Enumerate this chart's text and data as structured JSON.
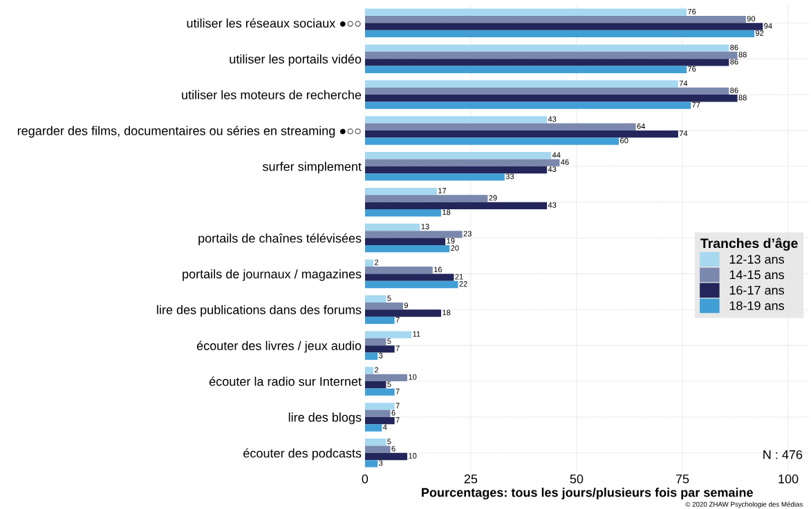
{
  "chart_data": {
    "type": "bar",
    "orientation": "horizontal",
    "xlabel": "Pourcentages: tous les jours/plusieurs fois par semaine",
    "legend_title": "Tranches d’âge",
    "categories": [
      "utiliser les réseaux sociaux ●○○",
      "utiliser les portails vidéo",
      "utiliser les moteurs de recherche",
      "regarder des films, documentaires ou séries en streaming ●○○",
      "surfer simplement",
      null,
      "portails de chaînes télévisées",
      "portails de journaux / magazines",
      "lire des publications dans des forums",
      "écouter des livres / jeux audio",
      "écouter la radio sur Internet",
      "lire des blogs",
      "écouter des podcasts"
    ],
    "series": [
      {
        "name": "12-13 ans",
        "color": "#a6d8f0",
        "values": [
          76,
          86,
          74,
          43,
          44,
          17,
          13,
          2,
          5,
          11,
          2,
          7,
          5
        ]
      },
      {
        "name": "14-15 ans",
        "color": "#7a88ad",
        "values": [
          90,
          88,
          86,
          64,
          46,
          29,
          23,
          16,
          9,
          5,
          10,
          6,
          6
        ]
      },
      {
        "name": "16-17 ans",
        "color": "#23265a",
        "values": [
          94,
          86,
          88,
          74,
          43,
          43,
          19,
          21,
          18,
          7,
          5,
          7,
          10
        ]
      },
      {
        "name": "18-19 ans",
        "color": "#419fd6",
        "values": [
          92,
          76,
          77,
          60,
          33,
          18,
          20,
          22,
          7,
          3,
          7,
          4,
          3
        ]
      }
    ],
    "xlim": [
      0,
      105
    ],
    "xticks": [
      0,
      25,
      50,
      75,
      100
    ],
    "data_labels": true,
    "grid": true,
    "legend": "center right",
    "annotations": [
      "N : 476",
      "© 2020 ZHAW Psychologie des Médias"
    ]
  }
}
